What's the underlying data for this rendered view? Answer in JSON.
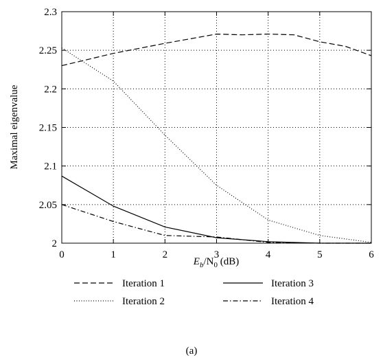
{
  "chart_data": {
    "type": "line",
    "title": "",
    "xlabel_main": "E",
    "xlabel_sub1": "b",
    "xlabel_mid": "/N",
    "xlabel_sub2": "0",
    "xlabel_tail": " (dB)",
    "ylabel": "Maximal eigenvalue",
    "xlim": [
      0,
      6
    ],
    "ylim": [
      2,
      2.3
    ],
    "xticks": [
      "0",
      "1",
      "2",
      "3",
      "4",
      "5",
      "6"
    ],
    "yticks": [
      "2",
      "2.05",
      "2.1",
      "2.15",
      "2.2",
      "2.25",
      "2.3"
    ],
    "grid": true,
    "legend_position": "bottom",
    "caption": "(a)",
    "series": [
      {
        "name": "Iteration 1",
        "dash": "8 4",
        "x": [
          0,
          1,
          2,
          3,
          3.5,
          4,
          4.5,
          5,
          5.5,
          6
        ],
        "y": [
          2.23,
          2.246,
          2.259,
          2.271,
          2.27,
          2.271,
          2.27,
          2.261,
          2.255,
          2.243
        ]
      },
      {
        "name": "Iteration 2",
        "dash": "1 2.5",
        "x": [
          0,
          1,
          2,
          3,
          4,
          5,
          6
        ],
        "y": [
          2.253,
          2.21,
          2.14,
          2.075,
          2.03,
          2.01,
          2.001
        ]
      },
      {
        "name": "Iteration 3",
        "dash": "",
        "x": [
          0,
          1,
          2,
          3,
          4,
          5,
          6
        ],
        "y": [
          2.087,
          2.048,
          2.021,
          2.007,
          2.002,
          2.0,
          2.0
        ]
      },
      {
        "name": "Iteration 4",
        "dash": "7 3 1.5 3",
        "x": [
          0,
          1,
          2,
          3,
          4,
          5,
          6
        ],
        "y": [
          2.05,
          2.028,
          2.01,
          2.008,
          2.001,
          2.0,
          2.0
        ]
      }
    ]
  }
}
